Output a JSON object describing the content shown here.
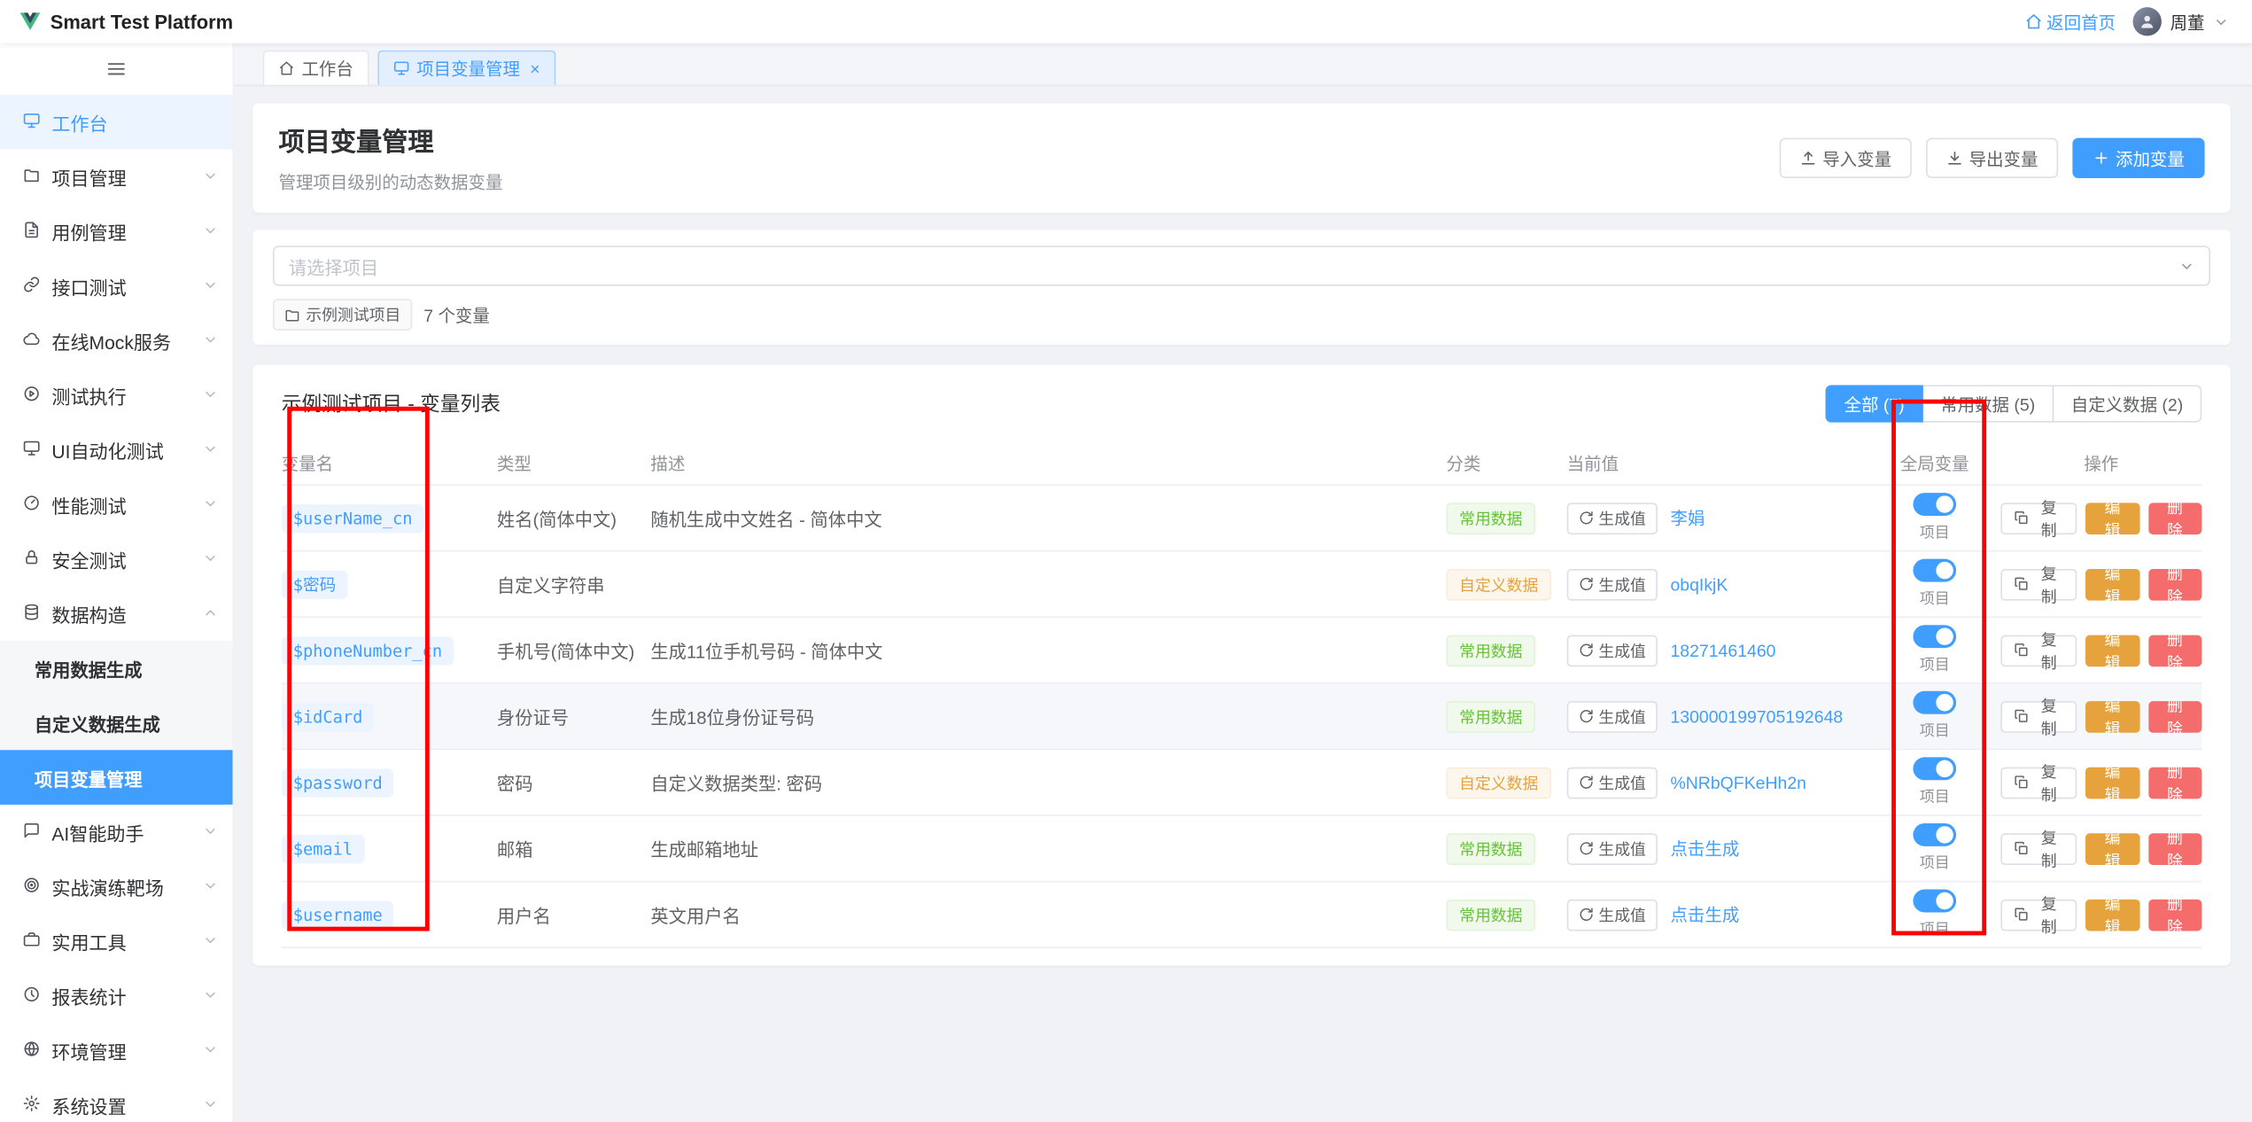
{
  "app": {
    "title": "Smart Test Platform",
    "home_link": "返回首页",
    "username": "周董"
  },
  "sidebar": {
    "items": [
      {
        "label": "工作台",
        "icon": "monitor",
        "open": true
      },
      {
        "label": "项目管理",
        "icon": "folder",
        "chevron": "down"
      },
      {
        "label": "用例管理",
        "icon": "document",
        "chevron": "down"
      },
      {
        "label": "接口测试",
        "icon": "link",
        "chevron": "down"
      },
      {
        "label": "在线Mock服务",
        "icon": "cloud",
        "chevron": "down"
      },
      {
        "label": "测试执行",
        "icon": "play",
        "chevron": "down"
      },
      {
        "label": "UI自动化测试",
        "icon": "monitor",
        "chevron": "down"
      },
      {
        "label": "性能测试",
        "icon": "gauge",
        "chevron": "down"
      },
      {
        "label": "安全测试",
        "icon": "lock",
        "chevron": "down"
      },
      {
        "label": "数据构造",
        "icon": "database",
        "chevron": "up",
        "children": [
          {
            "label": "常用数据生成"
          },
          {
            "label": "自定义数据生成"
          },
          {
            "label": "项目变量管理",
            "active": true
          }
        ]
      },
      {
        "label": "AI智能助手",
        "icon": "chat",
        "chevron": "down"
      },
      {
        "label": "实战演练靶场",
        "icon": "target",
        "chevron": "down"
      },
      {
        "label": "实用工具",
        "icon": "briefcase",
        "chevron": "down"
      },
      {
        "label": "报表统计",
        "icon": "clock",
        "chevron": "down"
      },
      {
        "label": "环境管理",
        "icon": "globe",
        "chevron": "down"
      },
      {
        "label": "系统设置",
        "icon": "gear",
        "chevron": "down"
      }
    ]
  },
  "tabs": [
    {
      "label": "工作台",
      "icon": "home",
      "active": false,
      "closable": false
    },
    {
      "label": "项目变量管理",
      "icon": "monitor",
      "active": true,
      "closable": true
    }
  ],
  "page": {
    "title": "项目变量管理",
    "subtitle": "管理项目级别的动态数据变量",
    "import_label": "导入变量",
    "export_label": "导出变量",
    "add_label": "添加变量"
  },
  "project_select": {
    "placeholder": "请选择项目"
  },
  "project_tag": {
    "label": "示例测试项目",
    "count_text": "7 个变量"
  },
  "table": {
    "title": "示例测试项目 - 变量列表",
    "filters": [
      {
        "label": "全部 (7)",
        "active": true
      },
      {
        "label": "常用数据 (5)",
        "active": false
      },
      {
        "label": "自定义数据 (2)",
        "active": false
      }
    ],
    "columns": [
      "变量名",
      "类型",
      "描述",
      "分类",
      "当前值",
      "全局变量",
      "操作"
    ],
    "generate_label": "生成值",
    "scope_label": "项目",
    "actions": {
      "copy": "复制",
      "edit": "编辑",
      "delete": "删除"
    },
    "rows": [
      {
        "name": "$userName_cn",
        "type": "姓名(简体中文)",
        "desc": "随机生成中文姓名 - 简体中文",
        "category": "常用数据",
        "category_kind": "common",
        "value": "李娟",
        "global": true,
        "highlight": false
      },
      {
        "name": "$密码",
        "type": "自定义字符串",
        "desc": "",
        "category": "自定义数据",
        "category_kind": "custom",
        "value": "obqIkjK",
        "global": true,
        "highlight": false
      },
      {
        "name": "$phoneNumber_cn",
        "type": "手机号(简体中文)",
        "desc": "生成11位手机号码 - 简体中文",
        "category": "常用数据",
        "category_kind": "common",
        "value": "18271461460",
        "global": true,
        "highlight": false
      },
      {
        "name": "$idCard",
        "type": "身份证号",
        "desc": "生成18位身份证号码",
        "category": "常用数据",
        "category_kind": "common",
        "value": "130000199705192648",
        "global": true,
        "highlight": true
      },
      {
        "name": "$password",
        "type": "密码",
        "desc": "自定义数据类型: 密码",
        "category": "自定义数据",
        "category_kind": "custom",
        "value": "%NRbQFKeHh2n",
        "global": true,
        "highlight": false
      },
      {
        "name": "$email",
        "type": "邮箱",
        "desc": "生成邮箱地址",
        "category": "常用数据",
        "category_kind": "common",
        "value": "点击生成",
        "global": true,
        "highlight": false
      },
      {
        "name": "$username",
        "type": "用户名",
        "desc": "英文用户名",
        "category": "常用数据",
        "category_kind": "common",
        "value": "点击生成",
        "global": true,
        "highlight": false
      }
    ]
  },
  "annotations": [
    {
      "target": "variable-name-column"
    },
    {
      "target": "global-variable-column"
    }
  ],
  "colors": {
    "primary": "#409eff",
    "success": "#67c23a",
    "warning": "#e6a23c",
    "danger": "#f56c6c",
    "annotation": "#ff0000",
    "logo_green": "#41b883",
    "logo_dark": "#35495e"
  }
}
